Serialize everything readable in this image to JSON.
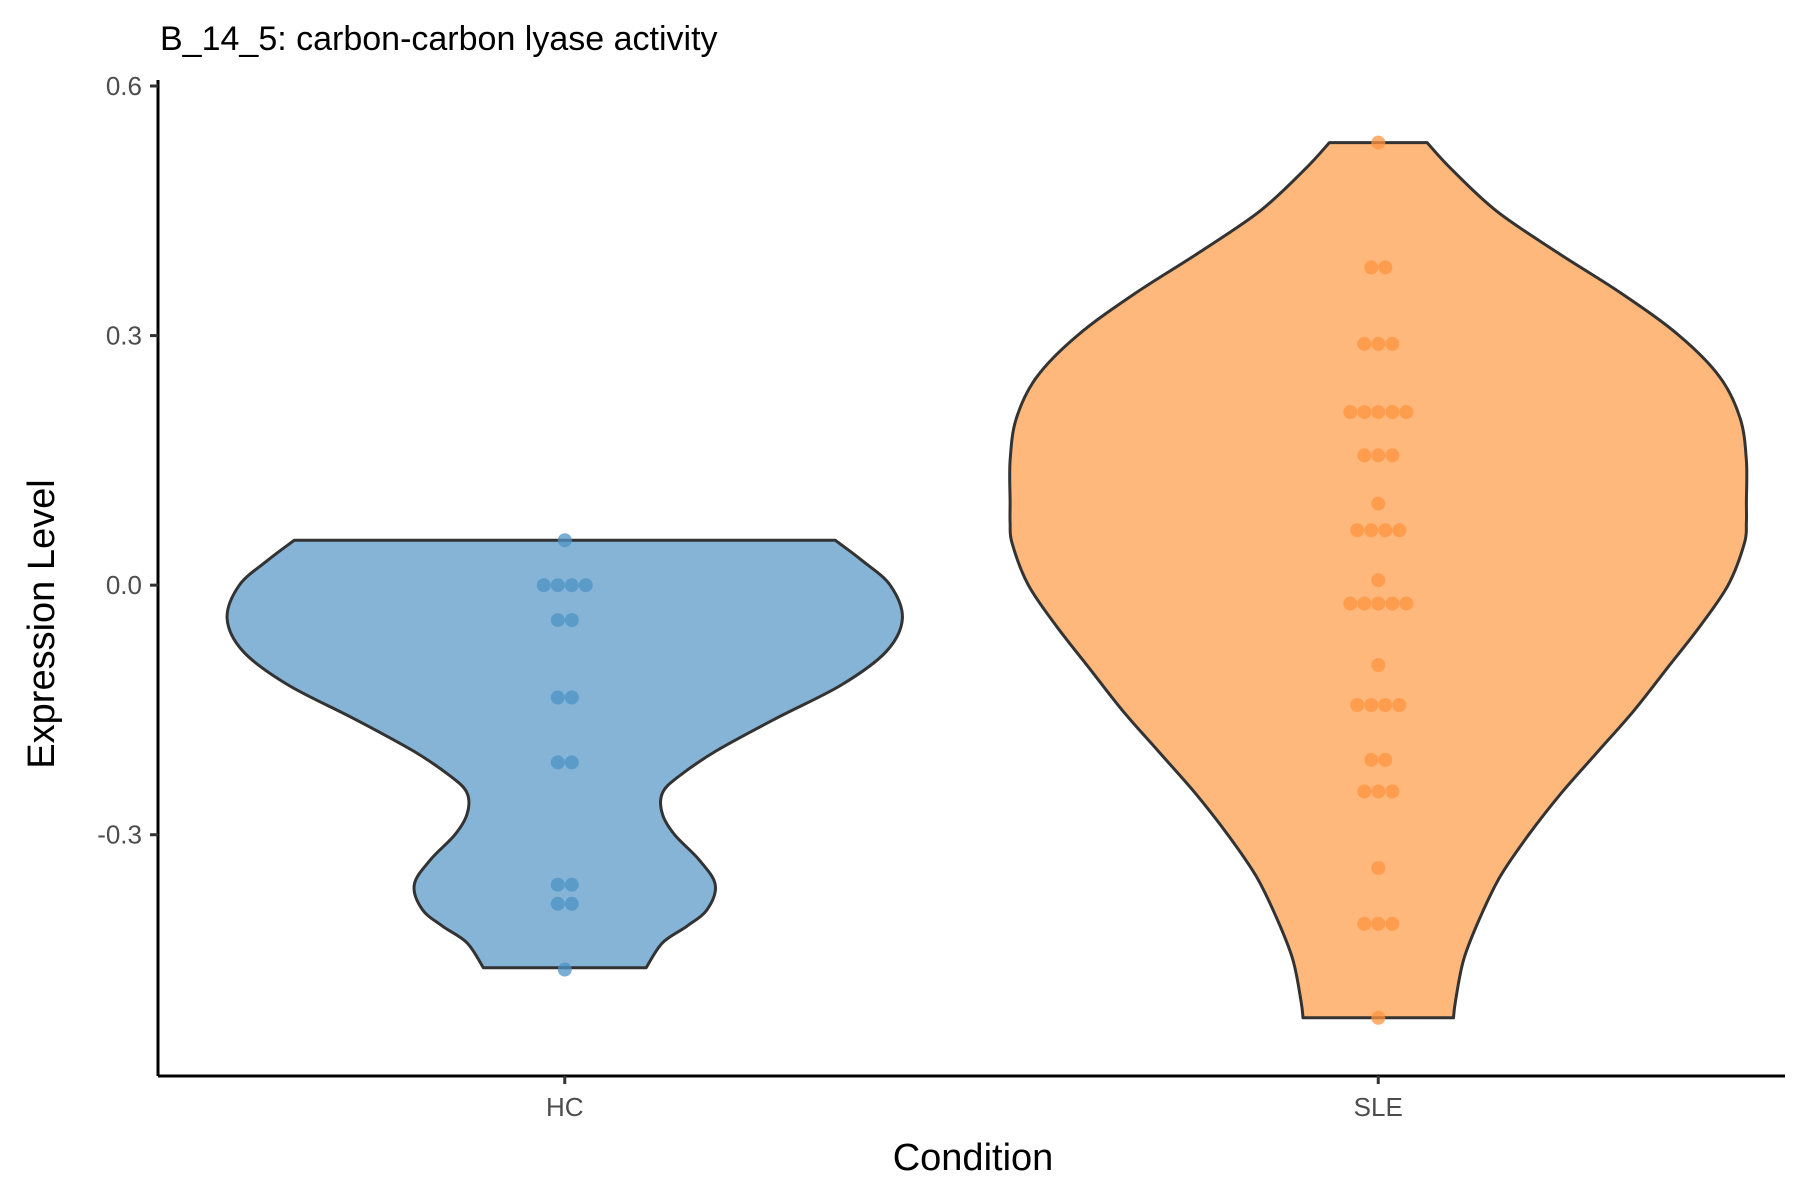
{
  "chart_data": {
    "type": "violin",
    "title": "B_14_5: carbon-carbon lyase activity",
    "xlabel": "Condition",
    "ylabel": "Expression Level",
    "categories": [
      "HC",
      "SLE"
    ],
    "ylim": [
      -0.59,
      0.6
    ],
    "yticks": [
      {
        "value": 0.6,
        "label": "0.6"
      },
      {
        "value": 0.3,
        "label": "0.3"
      },
      {
        "value": 0.0,
        "label": "0.0"
      },
      {
        "value": -0.3,
        "label": "-0.3"
      }
    ],
    "grid": false,
    "legend": "none",
    "series": [
      {
        "category": "HC",
        "fill": "#85b4d7",
        "point_color": "#4e93c6",
        "violin": {
          "y": [
            0.054,
            0.03,
            0.0,
            -0.04,
            -0.08,
            -0.12,
            -0.16,
            -0.2,
            -0.23,
            -0.25,
            -0.275,
            -0.3,
            -0.33,
            -0.36,
            -0.39,
            -0.41,
            -0.43,
            -0.46
          ],
          "width": [
            0.665,
            0.73,
            0.8,
            0.83,
            0.79,
            0.68,
            0.52,
            0.37,
            0.28,
            0.24,
            0.24,
            0.27,
            0.33,
            0.37,
            0.35,
            0.3,
            0.24,
            0.2
          ]
        },
        "points": [
          0.054,
          0.0,
          0.0,
          0.0,
          0.0,
          -0.042,
          -0.042,
          -0.135,
          -0.135,
          -0.213,
          -0.213,
          -0.36,
          -0.36,
          -0.383,
          -0.383,
          -0.462
        ]
      },
      {
        "category": "SLE",
        "fill": "#ffb87b",
        "point_color": "#ff9440",
        "violin": {
          "y": [
            0.532,
            0.5,
            0.45,
            0.4,
            0.35,
            0.3,
            0.25,
            0.2,
            0.15,
            0.1,
            0.075,
            0.05,
            0.0,
            -0.05,
            -0.1,
            -0.15,
            -0.2,
            -0.25,
            -0.3,
            -0.35,
            -0.4,
            -0.45,
            -0.5,
            -0.52
          ],
          "width": [
            0.12,
            0.18,
            0.29,
            0.44,
            0.6,
            0.74,
            0.84,
            0.89,
            0.905,
            0.905,
            0.905,
            0.9,
            0.86,
            0.79,
            0.71,
            0.63,
            0.54,
            0.45,
            0.37,
            0.3,
            0.25,
            0.21,
            0.19,
            0.185
          ]
        },
        "points": [
          0.532,
          0.382,
          0.382,
          0.29,
          0.29,
          0.29,
          0.208,
          0.208,
          0.208,
          0.208,
          0.208,
          0.156,
          0.156,
          0.156,
          0.098,
          0.066,
          0.066,
          0.066,
          0.066,
          0.006,
          -0.022,
          -0.022,
          -0.022,
          -0.022,
          -0.022,
          -0.096,
          -0.144,
          -0.144,
          -0.144,
          -0.144,
          -0.21,
          -0.21,
          -0.248,
          -0.248,
          -0.248,
          -0.34,
          -0.407,
          -0.407,
          -0.407,
          -0.52
        ]
      }
    ]
  }
}
